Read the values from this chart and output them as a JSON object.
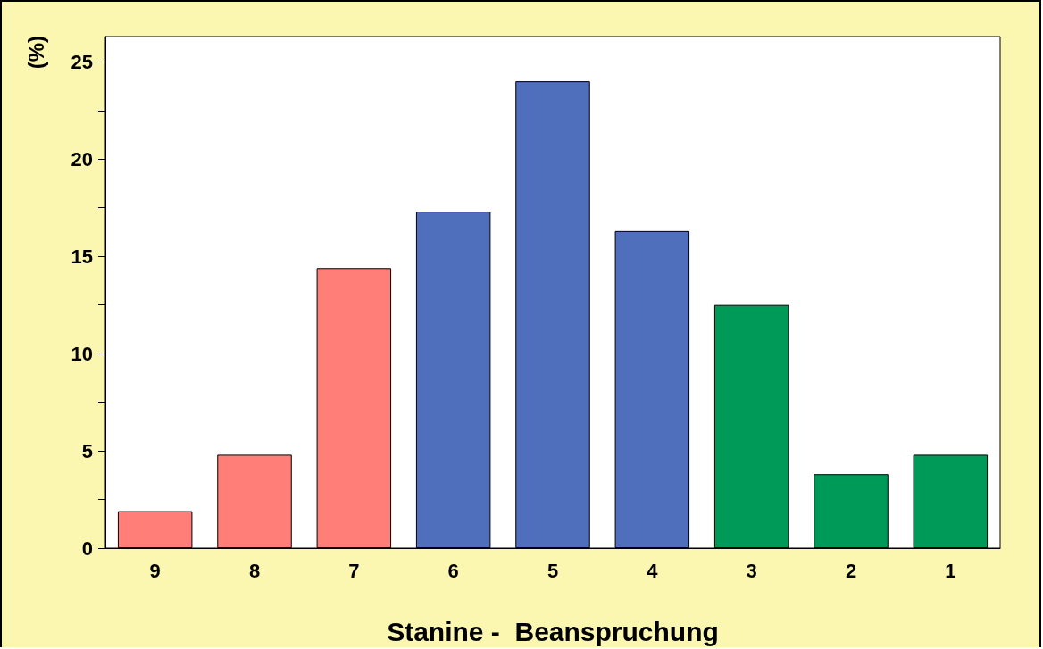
{
  "chart_data": {
    "type": "bar",
    "xlabel": "Stanine -  Beanspruchung",
    "ylabel": "(%)",
    "categories": [
      "9",
      "8",
      "7",
      "6",
      "5",
      "4",
      "3",
      "2",
      "1"
    ],
    "values": [
      1.9,
      4.8,
      14.4,
      17.3,
      24.0,
      16.3,
      12.5,
      3.8,
      4.8
    ],
    "colors": [
      "#ff7f78",
      "#ff7f78",
      "#ff7f78",
      "#4f6fbc",
      "#4f6fbc",
      "#4f6fbc",
      "#009a58",
      "#009a58",
      "#009a58"
    ],
    "ylim": [
      0,
      26.3
    ],
    "yticks": [
      0,
      {
        "value": 2.5,
        "label": null
      },
      5,
      {
        "value": 7.5,
        "label": null
      },
      10,
      {
        "value": 12.5,
        "label": null
      },
      15,
      {
        "value": 17.5,
        "label": null
      },
      20,
      {
        "value": 22.5,
        "label": null
      },
      25
    ],
    "grid": false
  }
}
